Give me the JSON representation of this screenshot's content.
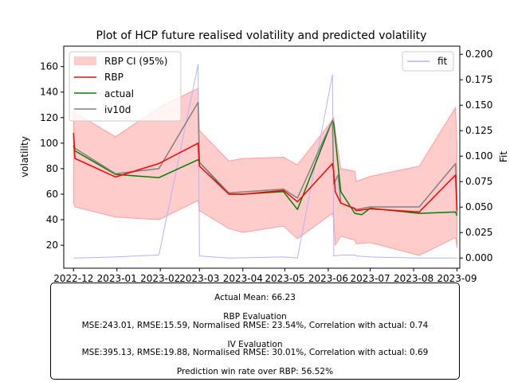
{
  "chart_data": {
    "type": "line",
    "title": "Plot of HCP future realised volatility and predicted volatility",
    "ylabel": "volatility",
    "y2label": "Fit",
    "ylim": [
      2,
      176
    ],
    "y2lim": [
      -0.01,
      0.208
    ],
    "xlim": [
      "2022-11-24",
      "2023-09-03"
    ],
    "x_ticks": [
      "2022-12-01",
      "2023-01-01",
      "2023-02-01",
      "2023-03-01",
      "2023-04-01",
      "2023-05-01",
      "2023-06-01",
      "2023-07-01",
      "2023-08-01",
      "2023-09-01"
    ],
    "x_tick_labels": [
      "2022-12",
      "2023-01",
      "2023-02",
      "2023-03",
      "2023-04",
      "2023-05",
      "2023-06",
      "2023-07",
      "2023-08",
      "2023-09"
    ],
    "y_ticks": [
      20,
      40,
      60,
      80,
      100,
      120,
      140,
      160
    ],
    "y2_ticks": [
      0.0,
      0.025,
      0.05,
      0.075,
      0.1,
      0.125,
      0.15,
      0.175,
      0.2
    ],
    "y2_tick_labels": [
      "0.000",
      "0.025",
      "0.050",
      "0.075",
      "0.100",
      "0.125",
      "0.150",
      "0.175",
      "0.200"
    ],
    "legend_left": {
      "position": "upper-left",
      "entries": [
        "RBP CI (95%)",
        "RBP",
        "actual",
        "iv10d"
      ]
    },
    "legend_right": {
      "position": "upper-right",
      "entries": [
        "fit"
      ]
    },
    "ci_band": {
      "name": "RBP CI (95%)",
      "color": "#ff0000",
      "alpha": 0.2,
      "x": [
        "2022-12-01",
        "2022-12-02",
        "2022-12-31",
        "2023-01-31",
        "2023-02-28",
        "2023-03-01",
        "2023-03-22",
        "2023-04-01",
        "2023-04-30",
        "2023-05-10",
        "2023-06-04",
        "2023-06-05",
        "2023-06-06",
        "2023-06-10",
        "2023-06-20",
        "2023-06-21",
        "2023-07-01",
        "2023-08-05",
        "2023-08-31",
        "2023-09-01"
      ],
      "upper": [
        126,
        124,
        105,
        128,
        143,
        110,
        86,
        88,
        89,
        83,
        118,
        120,
        110,
        80,
        78,
        70,
        74,
        82,
        128,
        100
      ],
      "lower": [
        53,
        50,
        42,
        40,
        55,
        47,
        33,
        30,
        35,
        25,
        45,
        40,
        20,
        27,
        24,
        21,
        22,
        12,
        26,
        18
      ]
    },
    "series": [
      {
        "name": "RBP",
        "color": "#ff0000",
        "axis": "left",
        "x": [
          "2022-12-01",
          "2022-12-02",
          "2022-12-31",
          "2023-01-31",
          "2023-02-28",
          "2023-03-01",
          "2023-03-22",
          "2023-04-01",
          "2023-04-30",
          "2023-05-10",
          "2023-06-04",
          "2023-06-05",
          "2023-06-06",
          "2023-06-10",
          "2023-06-20",
          "2023-06-21",
          "2023-07-01",
          "2023-08-05",
          "2023-08-31",
          "2023-09-01"
        ],
        "values": [
          108,
          88,
          73.5,
          84,
          100,
          82,
          60,
          60,
          63,
          54,
          84,
          77,
          62,
          53,
          48.5,
          47,
          48.5,
          46,
          75,
          47
        ]
      },
      {
        "name": "actual",
        "color": "#008000",
        "axis": "left",
        "x": [
          "2022-12-01",
          "2022-12-02",
          "2022-12-31",
          "2023-01-31",
          "2023-02-28",
          "2023-03-01",
          "2023-03-22",
          "2023-04-01",
          "2023-04-30",
          "2023-05-10",
          "2023-06-04",
          "2023-06-05",
          "2023-06-10",
          "2023-06-20",
          "2023-06-25",
          "2023-07-01",
          "2023-08-05",
          "2023-08-31",
          "2023-09-01"
        ],
        "values": [
          98,
          94,
          75.5,
          73,
          87,
          85,
          60,
          60,
          62,
          48,
          118,
          115,
          62,
          45,
          44,
          49,
          45,
          46,
          43
        ]
      },
      {
        "name": "iv10d",
        "color": "#808080",
        "axis": "left",
        "x": [
          "2022-12-01",
          "2022-12-02",
          "2022-12-31",
          "2023-01-31",
          "2023-02-28",
          "2023-03-01",
          "2023-03-22",
          "2023-04-30",
          "2023-05-10",
          "2023-06-04",
          "2023-06-05",
          "2023-06-08",
          "2023-06-10",
          "2023-06-20",
          "2023-06-21",
          "2023-07-01",
          "2023-08-05",
          "2023-08-31",
          "2023-09-01"
        ],
        "values": [
          105,
          96,
          76,
          80,
          132,
          85,
          61,
          64,
          57,
          118,
          68,
          75,
          53,
          49,
          48,
          50,
          50,
          84,
          44
        ]
      },
      {
        "name": "fit",
        "color": "#b3b3ff",
        "axis": "right",
        "x": [
          "2022-12-01",
          "2022-12-02",
          "2022-12-31",
          "2023-01-31",
          "2023-02-28",
          "2023-03-01",
          "2023-03-22",
          "2023-04-30",
          "2023-05-10",
          "2023-06-04",
          "2023-06-05",
          "2023-06-10",
          "2023-06-20",
          "2023-06-21",
          "2023-07-01",
          "2023-08-05",
          "2023-08-31",
          "2023-09-01"
        ],
        "values": [
          0.0,
          0.0,
          0.001,
          0.003,
          0.19,
          0.002,
          0.0,
          0.001,
          0.0,
          0.18,
          0.002,
          0.003,
          0.003,
          0.002,
          0.001,
          0.0,
          0.0,
          0.0
        ]
      }
    ]
  },
  "evaluation": {
    "line1": "Actual Mean: 66.23",
    "line2": "RBP Evaluation",
    "line3": "MSE:243.01, RMSE:15.59, Normalised RMSE: 23.54%, Correlation with actual: 0.74",
    "line4": "IV Evaluation",
    "line5": "MSE:395.13, RMSE:19.88, Normalised RMSE: 30.01%, Correlation with actual: 0.69",
    "line6": "Prediction win rate over RBP: 56.52%"
  }
}
